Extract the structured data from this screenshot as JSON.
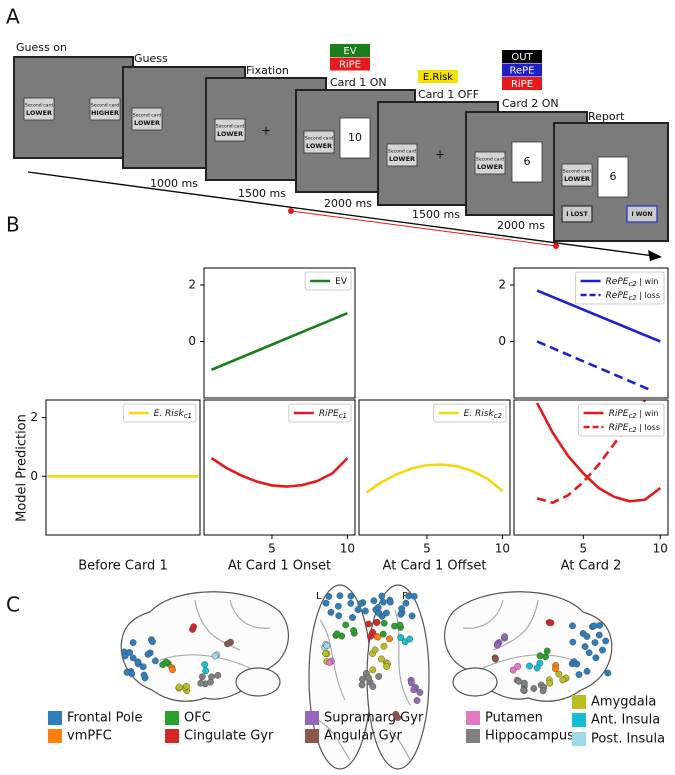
{
  "panel_a": {
    "label": "A",
    "screens": [
      {
        "title": "Guess on",
        "cards": [
          {
            "top": "Second card",
            "bottom": "LOWER"
          },
          {
            "top": "Second card",
            "bottom": "HIGHER"
          }
        ]
      },
      {
        "title": "Guess",
        "cards": [
          {
            "top": "Second card",
            "bottom": "LOWER"
          }
        ]
      },
      {
        "title": "Fixation",
        "cards": [
          {
            "top": "Second card",
            "bottom": "LOWER"
          }
        ],
        "fixation": "+"
      },
      {
        "title": "Card 1 ON",
        "cards": [
          {
            "top": "Second card",
            "bottom": "LOWER"
          }
        ],
        "card_value": 10,
        "signals": [
          {
            "text": "EV",
            "color": "#1a7f1a",
            "text_color": "#ffffff"
          },
          {
            "text": "RiPE",
            "color": "#e41a1c",
            "text_color": "#ffffff"
          }
        ]
      },
      {
        "title": "Card 1 OFF",
        "cards": [
          {
            "top": "Second card",
            "bottom": "LOWER"
          }
        ],
        "fixation": "+",
        "signals": [
          {
            "text": "E.Risk",
            "color": "#f5e000",
            "text_color": "#000000"
          }
        ]
      },
      {
        "title": "Card 2 ON",
        "cards": [
          {
            "top": "Second card",
            "bottom": "LOWER"
          }
        ],
        "card_value": 6,
        "signals": [
          {
            "text": "OUT",
            "color": "#000000",
            "text_color": "#ffffff"
          },
          {
            "text": "RePE",
            "color": "#1f1fc8",
            "text_color": "#ffffff"
          },
          {
            "text": "RiPE",
            "color": "#e41a1c",
            "text_color": "#ffffff"
          }
        ]
      },
      {
        "title": "Report",
        "cards": [
          {
            "top": "Second card",
            "bottom": "LOWER"
          }
        ],
        "card_value": 6,
        "buttons": [
          {
            "text": "I LOST",
            "border": "#333333"
          },
          {
            "text": "I WON",
            "border": "#2a3bd1"
          }
        ]
      }
    ],
    "durations": [
      "1000 ms",
      "1500 ms",
      "2000 ms",
      "1500 ms",
      "2000 ms"
    ]
  },
  "panel_b": {
    "label": "B",
    "ylabel": "Model Prediction"
  },
  "chart_data": [
    {
      "type": "line",
      "xlim": [
        0.5,
        10.5
      ],
      "ylim": [
        -2,
        2.6
      ],
      "yticks": [
        0,
        2
      ],
      "legend": "upper right",
      "series": [
        {
          "name": "EV",
          "color": "#1a7f1a",
          "x": [
            1,
            10
          ],
          "values": [
            -1,
            1
          ]
        }
      ]
    },
    {
      "type": "line",
      "xlim": [
        0.5,
        10.5
      ],
      "ylim": [
        -2,
        2.6
      ],
      "yticks": [
        0,
        2
      ],
      "legend": "upper right",
      "series": [
        {
          "name": "RePE",
          "subscript": "c2",
          "suffix": " | win",
          "color": "#1f1fd6",
          "x": [
            2,
            10
          ],
          "values": [
            1.8,
            0
          ]
        },
        {
          "name": "RePE",
          "subscript": "c2",
          "suffix": " | loss",
          "color": "#1f1fd6",
          "linestyle": "dashed",
          "x": [
            2,
            9.5
          ],
          "values": [
            0,
            -1.75
          ]
        }
      ]
    },
    {
      "type": "line",
      "xlim": [
        0.5,
        10.5
      ],
      "ylim": [
        -2,
        2.6
      ],
      "yticks": [
        0,
        2
      ],
      "xlabel": "Before Card 1",
      "legend": "upper right",
      "series": [
        {
          "name": "E. Risk",
          "subscript": "c1",
          "color": "#f5d60f",
          "x": [
            0.6,
            10.4
          ],
          "values": [
            0,
            0
          ]
        }
      ]
    },
    {
      "type": "line",
      "xlim": [
        0.5,
        10.5
      ],
      "ylim": [
        -2,
        2.6
      ],
      "xticks": [
        5,
        10
      ],
      "xlabel": "At Card 1 Onset",
      "legend": "upper right",
      "series": [
        {
          "name": "RiPE",
          "subscript": "c1",
          "color": "#e41a1c",
          "x": [
            1,
            2,
            3,
            4,
            5,
            6,
            7,
            8,
            9,
            10
          ],
          "values": [
            0.62,
            0.28,
            0.02,
            -0.18,
            -0.31,
            -0.35,
            -0.3,
            -0.16,
            0.1,
            0.62
          ]
        }
      ]
    },
    {
      "type": "line",
      "xlim": [
        0.5,
        10.5
      ],
      "ylim": [
        -2,
        2.6
      ],
      "xticks": [
        5,
        10
      ],
      "xlabel": "At Card 1 Offset",
      "legend": "upper right",
      "series": [
        {
          "name": "E. Risk",
          "subscript": "c2",
          "color": "#f5d60f",
          "x": [
            1,
            2,
            3,
            4,
            5,
            6,
            7,
            8,
            9,
            10
          ],
          "values": [
            -0.55,
            -0.2,
            0.07,
            0.27,
            0.38,
            0.4,
            0.34,
            0.18,
            -0.08,
            -0.5
          ]
        }
      ]
    },
    {
      "type": "line",
      "xlim": [
        0.5,
        10.5
      ],
      "ylim": [
        -2,
        2.6
      ],
      "xticks": [
        5,
        10
      ],
      "xlabel": "At Card 2",
      "legend": "upper right",
      "series": [
        {
          "name": "RiPE",
          "subscript": "c2",
          "suffix": " | win",
          "color": "#e41a1c",
          "x": [
            2,
            3,
            4,
            5,
            6,
            7,
            8,
            9,
            10
          ],
          "values": [
            2.5,
            1.5,
            0.7,
            0.1,
            -0.4,
            -0.7,
            -0.85,
            -0.8,
            -0.4
          ]
        },
        {
          "name": "RiPE",
          "subscript": "c2",
          "suffix": " | loss",
          "color": "#e41a1c",
          "linestyle": "dashed",
          "x": [
            2,
            3,
            4,
            5,
            6,
            7,
            8,
            9
          ],
          "values": [
            -0.75,
            -0.9,
            -0.65,
            -0.2,
            0.4,
            1.1,
            1.8,
            2.6
          ]
        }
      ]
    }
  ],
  "panel_c": {
    "label": "C",
    "hemisphere_labels": [
      "L",
      "R"
    ],
    "legend": [
      {
        "name": "Frontal Pole",
        "color": "#2e7ebc"
      },
      {
        "name": "vmPFC",
        "color": "#ff7f0e"
      },
      {
        "name": "OFC",
        "color": "#2ca02c"
      },
      {
        "name": "Cingulate Gyr",
        "color": "#d62728"
      },
      {
        "name": "Supramarg Gyr",
        "color": "#9467bd"
      },
      {
        "name": "Angular Gyr",
        "color": "#8c564b"
      },
      {
        "name": "Putamen",
        "color": "#e377c2"
      },
      {
        "name": "Hippocampus",
        "color": "#7f7f7f"
      },
      {
        "name": "Amygdala",
        "color": "#bcbd22"
      },
      {
        "name": "Ant. Insula",
        "color": "#17becf"
      },
      {
        "name": "Post. Insula",
        "color": "#9edae5"
      }
    ]
  }
}
